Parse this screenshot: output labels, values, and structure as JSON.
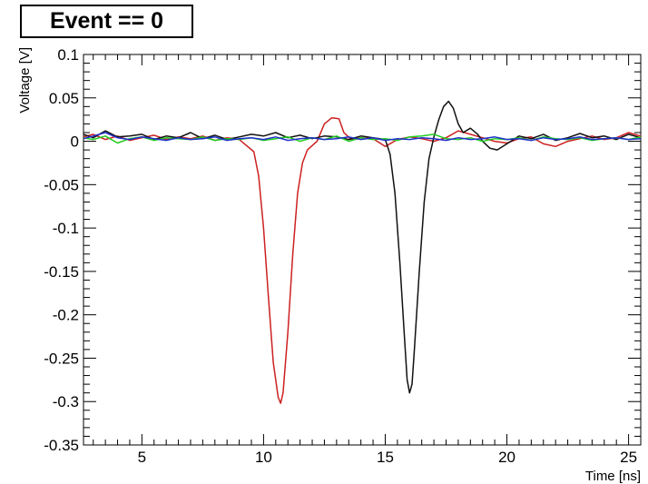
{
  "chart_data": {
    "type": "line",
    "title": "Event == 0",
    "xlabel": "Time [ns]",
    "ylabel": "Voltage [V]",
    "xlim": [
      2.6,
      25.5
    ],
    "ylim": [
      -0.35,
      0.1
    ],
    "grid": false,
    "x_ticks": [
      5,
      10,
      15,
      20,
      25
    ],
    "y_ticks": [
      0.1,
      0.05,
      0,
      -0.05,
      -0.1,
      -0.15,
      -0.2,
      -0.25,
      -0.3,
      -0.35
    ],
    "x_tick_labels": [
      "5",
      "10",
      "15",
      "20",
      "25"
    ],
    "y_tick_labels": [
      "0.1",
      "0.05",
      "0",
      "-0.05",
      "-0.1",
      "-0.15",
      "-0.2",
      "-0.25",
      "-0.3",
      "-0.35"
    ],
    "series": [
      {
        "color": "#cc2020",
        "x": [
          2.6,
          3.0,
          3.5,
          4.0,
          4.5,
          5.0,
          5.5,
          6.0,
          6.5,
          7.0,
          7.5,
          8.0,
          8.5,
          9.0,
          9.3,
          9.6,
          9.8,
          10.0,
          10.2,
          10.4,
          10.6,
          10.7,
          10.8,
          11.0,
          11.2,
          11.4,
          11.6,
          11.8,
          12.0,
          12.2,
          12.5,
          12.8,
          13.1,
          13.3,
          13.6,
          14.0,
          14.5,
          15.0,
          15.5,
          16.0,
          16.5,
          17.0,
          17.5,
          18.0,
          18.5,
          19.0,
          19.5,
          20.0,
          20.5,
          21.0,
          21.5,
          22.0,
          22.5,
          23.0,
          23.5,
          24.0,
          24.5,
          25.0,
          25.5
        ],
        "y": [
          0.005,
          0.008,
          0.002,
          0.006,
          0.001,
          0.004,
          0.007,
          0.002,
          0.005,
          0.003,
          0.006,
          0.001,
          0.004,
          0.002,
          -0.005,
          -0.012,
          -0.04,
          -0.1,
          -0.18,
          -0.255,
          -0.295,
          -0.302,
          -0.29,
          -0.22,
          -0.13,
          -0.06,
          -0.025,
          -0.01,
          -0.005,
          0.0,
          0.02,
          0.027,
          0.026,
          0.01,
          0.002,
          0.004,
          0.003,
          -0.006,
          0.002,
          0.005,
          0.003,
          0.0,
          0.004,
          0.012,
          0.008,
          0.004,
          0.0,
          -0.002,
          0.003,
          0.005,
          -0.003,
          -0.006,
          0.0,
          0.003,
          0.006,
          0.002,
          0.004,
          0.01,
          0.006
        ]
      },
      {
        "color": "#111111",
        "x": [
          2.6,
          3.0,
          3.5,
          4.0,
          4.5,
          5.0,
          5.5,
          6.0,
          6.5,
          7.0,
          7.5,
          8.0,
          8.5,
          9.0,
          9.5,
          10.0,
          10.5,
          11.0,
          11.5,
          12.0,
          12.5,
          13.0,
          13.5,
          14.0,
          14.5,
          15.0,
          15.2,
          15.4,
          15.6,
          15.8,
          15.9,
          16.0,
          16.1,
          16.2,
          16.4,
          16.6,
          16.8,
          17.0,
          17.2,
          17.4,
          17.6,
          17.8,
          18.0,
          18.2,
          18.5,
          18.8,
          19.0,
          19.3,
          19.6,
          20.0,
          20.5,
          21.0,
          21.5,
          22.0,
          22.5,
          23.0,
          23.5,
          24.0,
          24.5,
          25.0,
          25.5
        ],
        "y": [
          0.008,
          0.004,
          0.012,
          0.005,
          0.006,
          0.008,
          0.002,
          0.006,
          0.004,
          0.01,
          0.003,
          0.007,
          0.002,
          0.005,
          0.008,
          0.006,
          0.01,
          0.004,
          0.007,
          0.003,
          0.006,
          0.005,
          0.002,
          0.006,
          0.004,
          0.002,
          -0.015,
          -0.06,
          -0.14,
          -0.23,
          -0.275,
          -0.29,
          -0.28,
          -0.24,
          -0.15,
          -0.07,
          -0.02,
          0.005,
          0.025,
          0.04,
          0.046,
          0.038,
          0.02,
          0.01,
          0.015,
          0.008,
          0.0,
          -0.008,
          -0.01,
          -0.003,
          0.006,
          0.003,
          0.008,
          0.001,
          0.004,
          0.009,
          0.004,
          0.006,
          0.002,
          0.008,
          0.004
        ]
      },
      {
        "color": "#22cc22",
        "x": [
          2.6,
          3.0,
          3.5,
          4.0,
          4.5,
          5.0,
          5.5,
          6.0,
          6.5,
          7.0,
          7.5,
          8.0,
          8.5,
          9.0,
          9.5,
          10.0,
          10.5,
          11.0,
          11.5,
          12.0,
          12.5,
          13.0,
          13.5,
          14.0,
          14.5,
          15.0,
          15.5,
          16.0,
          16.5,
          17.0,
          17.5,
          18.0,
          18.5,
          19.0,
          19.5,
          20.0,
          20.5,
          21.0,
          21.5,
          22.0,
          22.5,
          23.0,
          23.5,
          24.0,
          24.5,
          25.0,
          25.5
        ],
        "y": [
          0.004,
          0.002,
          0.006,
          -0.002,
          0.003,
          0.005,
          0.001,
          0.004,
          0.003,
          0.002,
          0.005,
          0.001,
          0.003,
          0.002,
          0.004,
          0.001,
          0.003,
          0.005,
          0.0,
          0.004,
          0.002,
          0.006,
          0.0,
          0.004,
          0.002,
          0.003,
          0.001,
          0.005,
          0.006,
          0.008,
          0.003,
          0.002,
          0.004,
          0.0,
          0.003,
          0.002,
          0.004,
          0.001,
          0.005,
          0.003,
          0.002,
          0.004,
          0.001,
          0.003,
          0.004,
          0.002,
          0.005
        ]
      },
      {
        "color": "#2030cc",
        "x": [
          2.6,
          3.0,
          3.5,
          4.0,
          4.5,
          5.0,
          5.5,
          6.0,
          6.5,
          7.0,
          7.5,
          8.0,
          8.5,
          9.0,
          9.5,
          10.0,
          10.5,
          11.0,
          11.5,
          12.0,
          12.5,
          13.0,
          13.5,
          14.0,
          14.5,
          15.0,
          15.5,
          16.0,
          16.5,
          17.0,
          17.5,
          18.0,
          18.5,
          19.0,
          19.5,
          20.0,
          20.5,
          21.0,
          21.5,
          22.0,
          22.5,
          23.0,
          23.5,
          24.0,
          24.5,
          25.0,
          25.5
        ],
        "y": [
          0.003,
          0.006,
          0.01,
          0.004,
          0.002,
          0.005,
          0.003,
          0.001,
          0.004,
          0.002,
          0.003,
          0.005,
          0.001,
          0.003,
          0.004,
          0.002,
          0.005,
          0.001,
          0.003,
          0.004,
          0.002,
          0.003,
          0.005,
          0.002,
          0.004,
          0.001,
          0.003,
          0.002,
          0.004,
          0.003,
          0.001,
          0.004,
          0.002,
          0.003,
          0.005,
          0.002,
          0.003,
          0.001,
          0.004,
          0.002,
          0.003,
          0.005,
          0.002,
          0.003,
          0.004,
          0.002,
          0.003
        ]
      }
    ]
  }
}
